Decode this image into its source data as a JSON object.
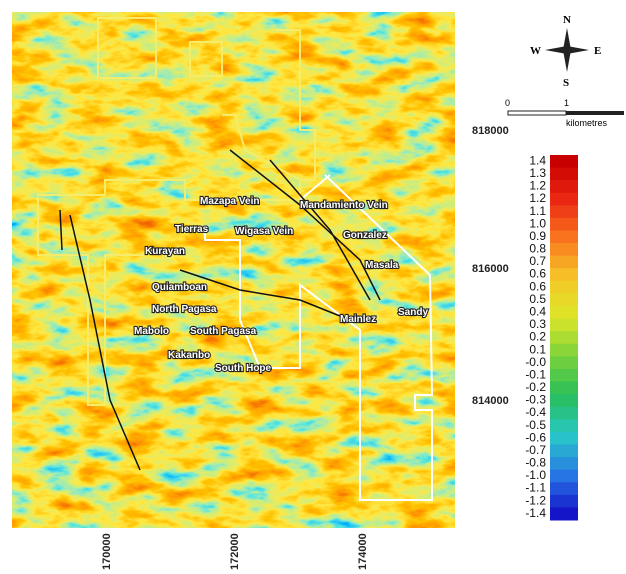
{
  "compass": {
    "north": "N",
    "south": "S",
    "west": "W",
    "east": "E"
  },
  "scale_bar": {
    "start": "0",
    "mid": "1",
    "unit": "kilometres"
  },
  "northings": [
    "818000",
    "816000",
    "814000"
  ],
  "eastings": [
    "170000",
    "172000",
    "174000"
  ],
  "places": [
    "Mazapa Vein",
    "Mandamiento Vein",
    "Tierras",
    "Wigasa Vein",
    "Gonzalez",
    "Kurayan",
    "Masala",
    "Quiamboan",
    "North Pagasa",
    "Sandy",
    "Mainlez",
    "Mabolo",
    "South Pagasa",
    "Kakanbo",
    "South Hope"
  ],
  "legend": {
    "labels": [
      "1.4",
      "1.3",
      "1.2",
      "1.2",
      "1.1",
      "1.0",
      "0.9",
      "0.8",
      "0.7",
      "0.6",
      "0.6",
      "0.5",
      "0.4",
      "0.3",
      "0.2",
      "0.1",
      "-0.0",
      "-0.1",
      "-0.2",
      "-0.3",
      "-0.4",
      "-0.5",
      "-0.6",
      "-0.7",
      "-0.8",
      "-1.0",
      "-1.1",
      "-1.2",
      "-1.4"
    ]
  }
}
